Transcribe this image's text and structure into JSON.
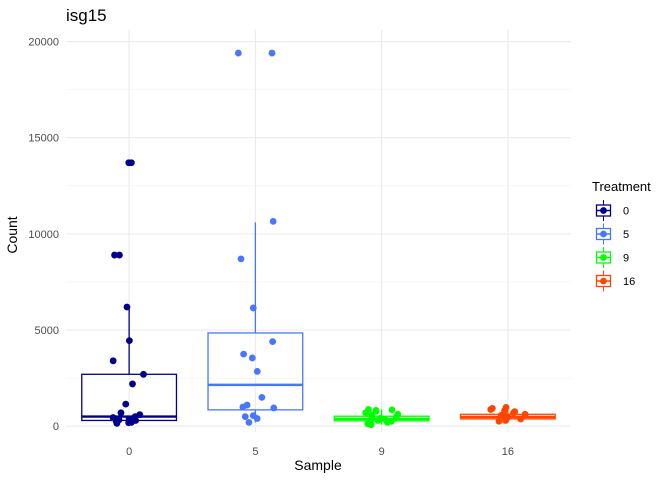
{
  "chart_data": {
    "type": "boxplot",
    "title": "isg15",
    "xlabel": "Sample",
    "ylabel": "Count",
    "ylim": [
      -300,
      20600
    ],
    "yticks": [
      0,
      5000,
      10000,
      15000,
      20000
    ],
    "ytick_labels": [
      "0",
      "5000",
      "10000",
      "15000",
      "20000"
    ],
    "grid": true,
    "legend": {
      "title": "Treatment",
      "position": "right"
    },
    "categories": [
      "0",
      "5",
      "9",
      "16"
    ],
    "series": [
      {
        "name": "0",
        "color": "#00008B",
        "box": {
          "min": 150,
          "q1": 300,
          "median": 500,
          "q3": 2700,
          "max": 6200
        },
        "points": [
          13700,
          13700,
          8900,
          8900,
          6200,
          4450,
          3400,
          2700,
          2200,
          1150,
          700,
          600,
          500,
          450,
          380,
          330,
          300,
          250,
          200,
          180,
          150
        ]
      },
      {
        "name": "5",
        "color": "#4876FF",
        "box": {
          "min": 200,
          "q1": 850,
          "median": 2150,
          "q3": 4850,
          "max": 10600
        },
        "points": [
          19400,
          19400,
          10650,
          8700,
          6150,
          4400,
          3750,
          3550,
          2850,
          1500,
          1100,
          1000,
          950,
          550,
          500,
          400,
          200
        ]
      },
      {
        "name": "9",
        "color": "#00FF00",
        "box": {
          "min": 80,
          "q1": 280,
          "median": 380,
          "q3": 520,
          "max": 880
        },
        "points": [
          870,
          850,
          820,
          780,
          700,
          620,
          560,
          480,
          420,
          380,
          330,
          300,
          260,
          200,
          130,
          80
        ]
      },
      {
        "name": "16",
        "color": "#FF4500",
        "box": {
          "min": 250,
          "q1": 380,
          "median": 480,
          "q3": 620,
          "max": 1000
        },
        "points": [
          980,
          930,
          870,
          810,
          760,
          690,
          620,
          570,
          520,
          470,
          420,
          380,
          340,
          300,
          260
        ]
      }
    ]
  }
}
